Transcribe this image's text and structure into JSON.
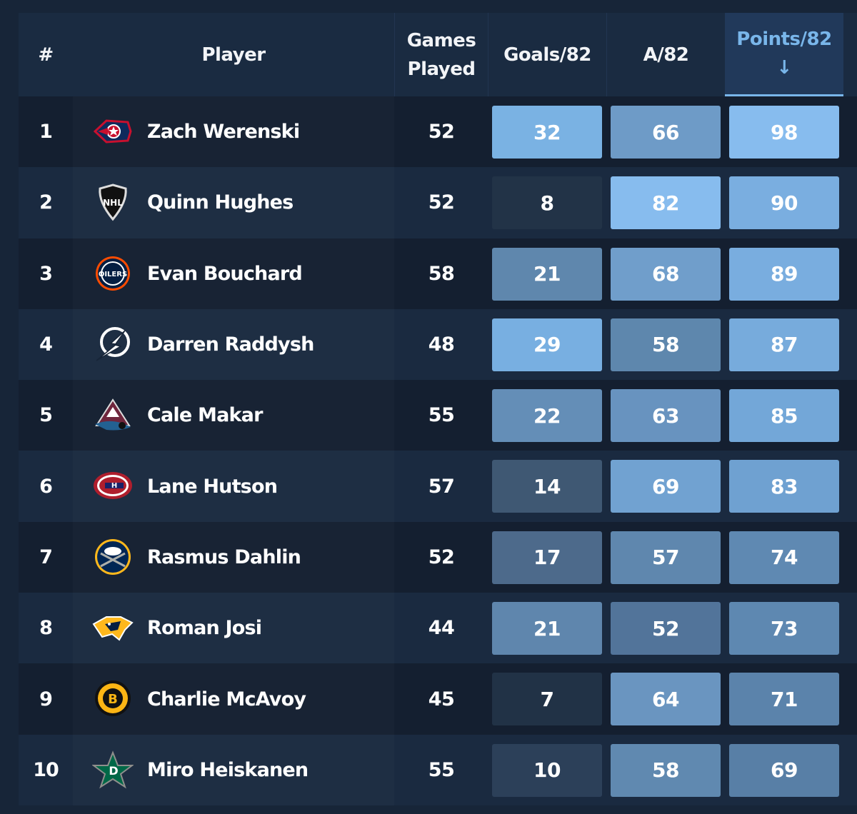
{
  "header": {
    "rank": "#",
    "player": "Player",
    "games_line1": "Games",
    "games_line2": "Played",
    "goals": "Goals/82",
    "assists": "A/82",
    "points": "Points/82",
    "sort_arrow": "↓"
  },
  "colors": {
    "background": "#172538",
    "sorted_header_bg": "#21395a",
    "sorted_accent": "#79b6ea",
    "row_odd": "#141f30",
    "row_even": "#1a2a40"
  },
  "rows": [
    {
      "rank": "1",
      "player": "Zach Werenski",
      "team_logo": "columbus-blue-jackets-logo",
      "gp": "52",
      "goals": "32",
      "assists": "66",
      "points": "98",
      "goals_bg": "#7ab2e3",
      "assists_bg": "#6e9bc7",
      "points_bg": "#87bcee"
    },
    {
      "rank": "2",
      "player": "Quinn Hughes",
      "team_logo": "nhl-logo",
      "gp": "52",
      "goals": "8",
      "assists": "82",
      "points": "90",
      "goals_bg": "#223347",
      "assists_bg": "#87bcee",
      "points_bg": "#7aaee0"
    },
    {
      "rank": "3",
      "player": "Evan Bouchard",
      "team_logo": "edmonton-oilers-logo",
      "gp": "58",
      "goals": "21",
      "assists": "68",
      "points": "89",
      "goals_bg": "#5f87ad",
      "assists_bg": "#709ecb",
      "points_bg": "#79addf"
    },
    {
      "rank": "4",
      "player": "Darren Raddysh",
      "team_logo": "tampa-bay-lightning-logo",
      "gp": "48",
      "goals": "29",
      "assists": "58",
      "points": "87",
      "goals_bg": "#78afe1",
      "assists_bg": "#5e87ad",
      "points_bg": "#77abdc"
    },
    {
      "rank": "5",
      "player": "Cale Makar",
      "team_logo": "colorado-avalanche-logo",
      "gp": "55",
      "goals": "22",
      "assists": "63",
      "points": "85",
      "goals_bg": "#648eb7",
      "assists_bg": "#6893bf",
      "points_bg": "#73a7d8"
    },
    {
      "rank": "6",
      "player": "Lane Hutson",
      "team_logo": "montreal-canadiens-logo",
      "gp": "57",
      "goals": "14",
      "assists": "69",
      "points": "83",
      "goals_bg": "#3f5873",
      "assists_bg": "#71a2d1",
      "points_bg": "#6fa1d1"
    },
    {
      "rank": "7",
      "player": "Rasmus Dahlin",
      "team_logo": "buffalo-sabres-logo",
      "gp": "52",
      "goals": "17",
      "assists": "57",
      "points": "74",
      "goals_bg": "#4d6a8b",
      "assists_bg": "#5f87ae",
      "points_bg": "#5f89b2"
    },
    {
      "rank": "8",
      "player": "Roman Josi",
      "team_logo": "nashville-predators-logo",
      "gp": "44",
      "goals": "21",
      "assists": "52",
      "points": "73",
      "goals_bg": "#5f86ad",
      "assists_bg": "#52749a",
      "points_bg": "#5e88b1"
    },
    {
      "rank": "9",
      "player": "Charlie McAvoy",
      "team_logo": "boston-bruins-logo",
      "gp": "45",
      "goals": "7",
      "assists": "64",
      "points": "71",
      "goals_bg": "#213246",
      "assists_bg": "#6a95c0",
      "points_bg": "#5b83ab"
    },
    {
      "rank": "10",
      "player": "Miro Heiskanen",
      "team_logo": "dallas-stars-logo",
      "gp": "55",
      "goals": "10",
      "assists": "58",
      "points": "69",
      "goals_bg": "#2c4059",
      "assists_bg": "#6089b0",
      "points_bg": "#587fa6"
    }
  ]
}
